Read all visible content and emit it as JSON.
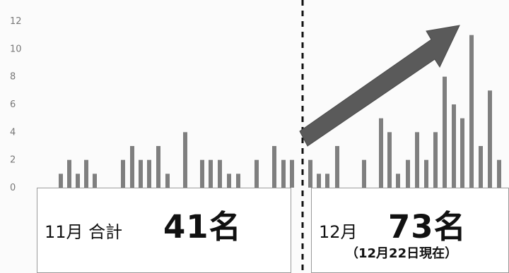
{
  "chart_data": {
    "type": "bar",
    "ylim": [
      0,
      12
    ],
    "yticks": [
      0,
      2,
      4,
      6,
      8,
      10,
      12
    ],
    "grid": false,
    "colors": {
      "bar": "#7f7f7f",
      "arrow": "#5a5a5a",
      "divider": "#111111"
    },
    "series": [
      {
        "values": [
          1,
          2,
          1,
          2,
          1,
          2,
          3,
          2,
          2,
          3,
          1,
          4,
          2,
          2,
          2,
          1,
          1,
          2,
          3,
          2,
          2,
          2,
          1,
          1,
          3,
          2,
          5,
          4,
          1,
          2,
          4,
          2,
          4,
          8,
          6,
          5,
          11,
          3,
          7,
          2
        ]
      }
    ],
    "annotations": {
      "trend": "up-arrow"
    }
  },
  "summary": {
    "november": {
      "month_label": "11月 合計",
      "total": "41名"
    },
    "december": {
      "month_label": "12月",
      "total": "73名",
      "note": "（12月22日現在）"
    }
  }
}
